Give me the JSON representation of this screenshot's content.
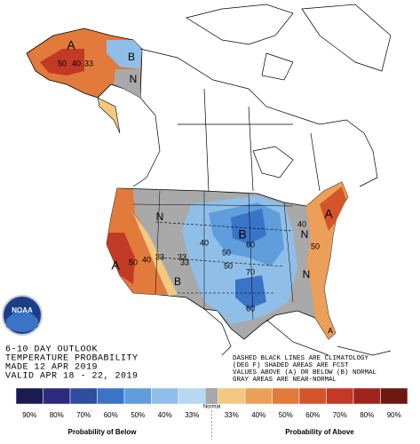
{
  "outlook": {
    "lines": [
      "6-10 DAY OUTLOOK",
      "TEMPERATURE PROBABILITY",
      "MADE  12 APR 2019",
      "VALID  APR 18 - 22, 2019"
    ]
  },
  "notes": [
    "DASHED BLACK LINES ARE CLIMATOLOGY",
    "(DEG F) SHADED AREAS ARE FCST",
    "VALUES ABOVE (A) OR BELOW (B) NORMAL",
    "GRAY AREAS ARE NEAR-NORMAL"
  ],
  "logo": "NOAA",
  "map_labels": [
    "A",
    "50",
    "40",
    "33",
    "B",
    "N",
    "N",
    "B",
    "A",
    "50",
    "40",
    "33",
    "40",
    "60",
    "50",
    "33",
    "B",
    "60",
    "N",
    "N",
    "A",
    "40",
    "50",
    "33",
    "A",
    "70",
    "50"
  ],
  "legend": {
    "below": {
      "labels": [
        "90%",
        "80%",
        "70%",
        "60%",
        "50%",
        "40%",
        "33%"
      ],
      "colors": [
        "#1b1b50",
        "#2d2a7e",
        "#2f4d9e",
        "#3a74c6",
        "#5f9ddc",
        "#8fbfe8",
        "#b8d7f1"
      ],
      "title": "Probability of Below"
    },
    "normal": {
      "label": "Normal",
      "color": "#a9a9a9"
    },
    "above": {
      "labels": [
        "33%",
        "40%",
        "50%",
        "60%",
        "70%",
        "80%",
        "90%"
      ],
      "colors": [
        "#f3c880",
        "#ec9f58",
        "#e27a3c",
        "#d4552c",
        "#c23a25",
        "#a0231d",
        "#6e1812"
      ],
      "title": "Probability of Above"
    }
  }
}
